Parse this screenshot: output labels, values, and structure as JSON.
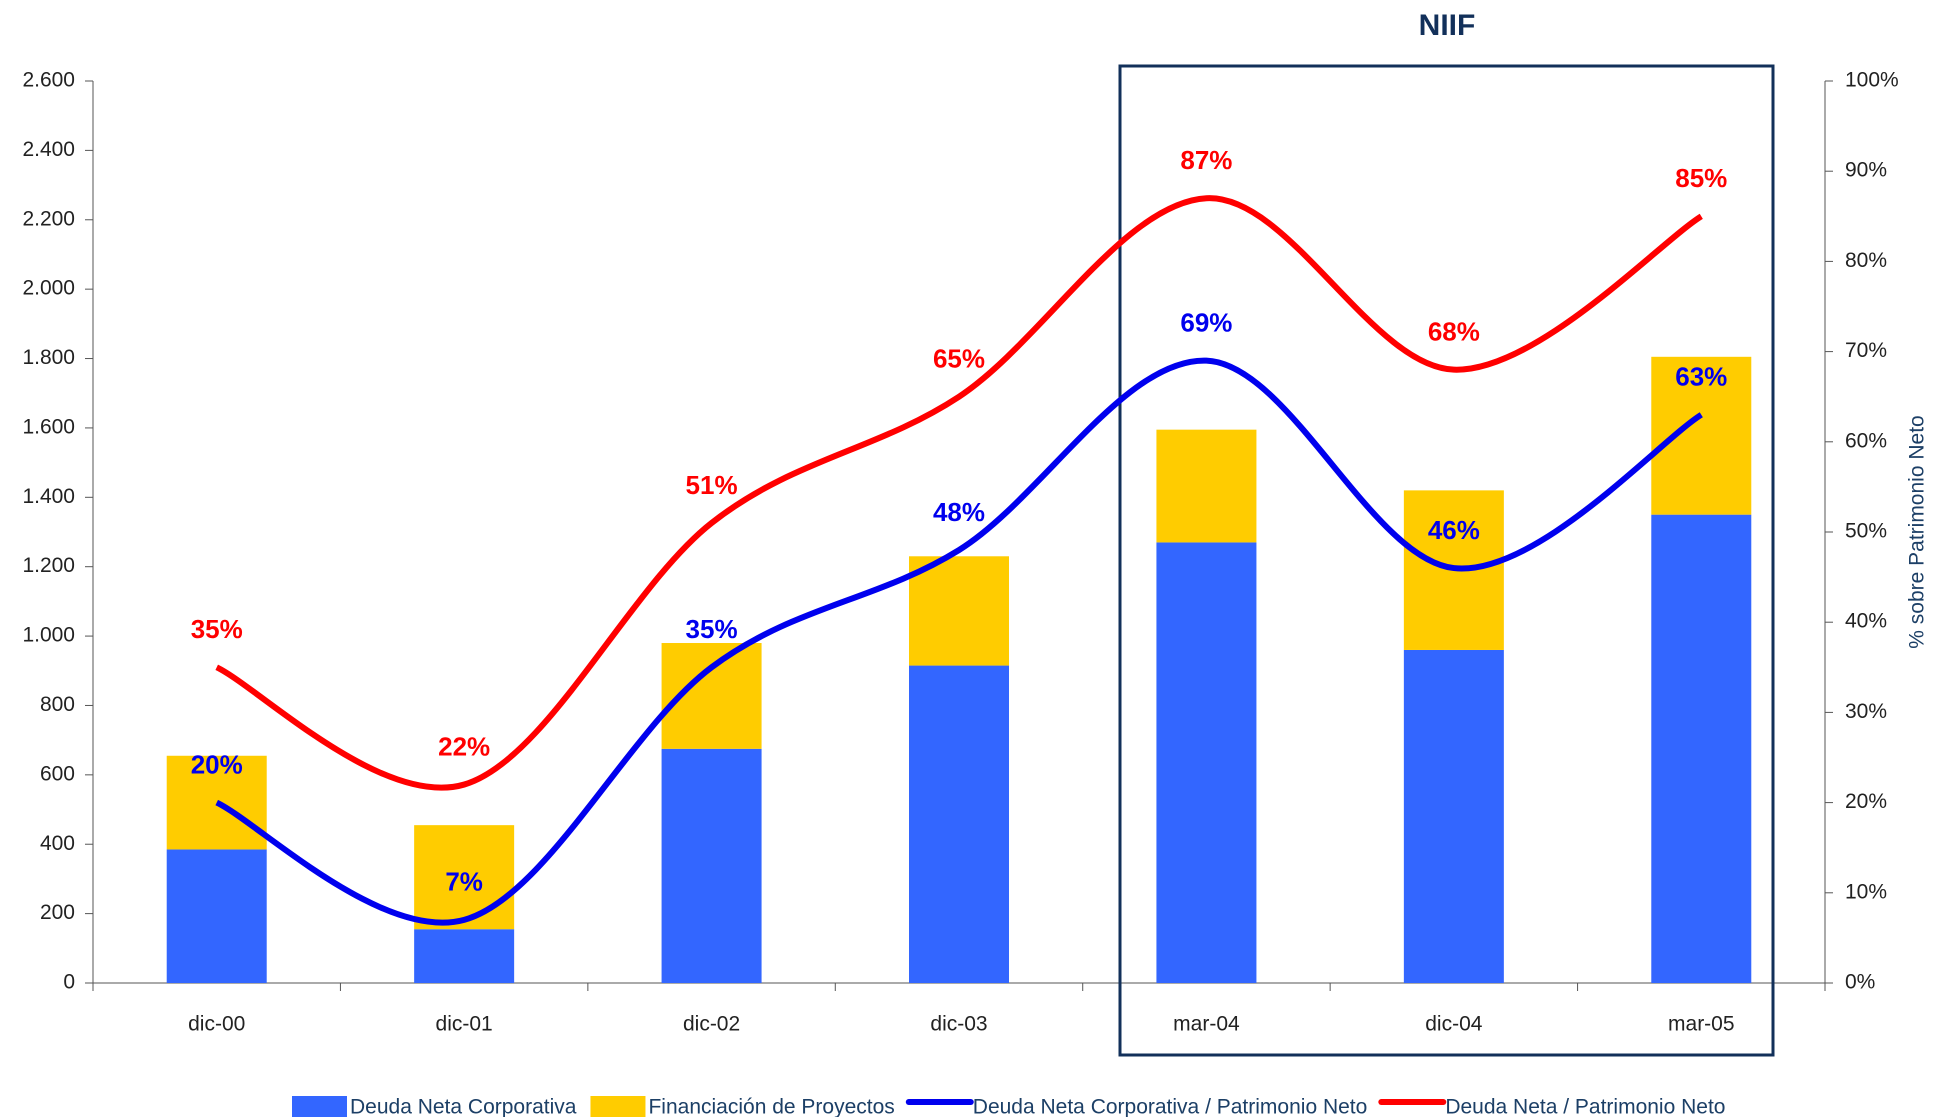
{
  "chart_data": {
    "type": "bar",
    "annotation": "NIIF",
    "categories": [
      "dic-00",
      "dic-01",
      "dic-02",
      "dic-03",
      "mar-04",
      "dic-04",
      "mar-05"
    ],
    "series": [
      {
        "name": "Deuda Neta Corporativa",
        "color": "#3366ff",
        "values": [
          385,
          155,
          675,
          915,
          1270,
          960,
          1350
        ]
      },
      {
        "name": "Financiación de Proyectos",
        "color": "#ffcc00",
        "values": [
          270,
          300,
          305,
          315,
          325,
          460,
          455
        ]
      },
      {
        "name": "Deuda Neta Corporativa / Patrimonio Neto",
        "color": "#0000ee",
        "type": "line",
        "axis": "y2",
        "values": [
          20,
          7,
          35,
          48,
          69,
          46,
          63
        ],
        "value_labels": [
          "20%",
          "7%",
          "35%",
          "48%",
          "69%",
          "46%",
          "63%"
        ]
      },
      {
        "name": "Deuda Neta / Patrimonio Neto",
        "color": "#ff0000",
        "type": "line",
        "axis": "y2",
        "values": [
          35,
          22,
          51,
          65,
          87,
          68,
          85
        ],
        "value_labels": [
          "35%",
          "22%",
          "51%",
          "65%",
          "87%",
          "68%",
          "85%"
        ]
      }
    ],
    "ylim": [
      0,
      2600
    ],
    "yticks": [
      0,
      200,
      400,
      600,
      800,
      {
        "value": 1000,
        "label": "1.000"
      },
      {
        "value": 1200,
        "label": "1.200"
      },
      {
        "value": 1400,
        "label": "1.400"
      },
      {
        "value": 1600,
        "label": "1.600"
      },
      {
        "value": 1800,
        "label": "1.800"
      },
      {
        "value": 2000,
        "label": "2.000"
      },
      {
        "value": 2200,
        "label": "2.200"
      },
      {
        "value": 2400,
        "label": "2.400"
      },
      {
        "value": 2600,
        "label": "2.600"
      }
    ],
    "y2lim": [
      0,
      100
    ],
    "y2ticks": [
      {
        "value": 0,
        "label": "0%"
      },
      {
        "value": 10,
        "label": "10%"
      },
      {
        "value": 20,
        "label": "20%"
      },
      {
        "value": 30,
        "label": "30%"
      },
      {
        "value": 40,
        "label": "40%"
      },
      {
        "value": 50,
        "label": "50%"
      },
      {
        "value": 60,
        "label": "60%"
      },
      {
        "value": 70,
        "label": "70%"
      },
      {
        "value": 80,
        "label": "80%"
      },
      {
        "value": 90,
        "label": "90%"
      },
      {
        "value": 100,
        "label": "100%"
      }
    ],
    "y2label": "% sobre Patrimonio Neto",
    "legend": "bottom"
  }
}
